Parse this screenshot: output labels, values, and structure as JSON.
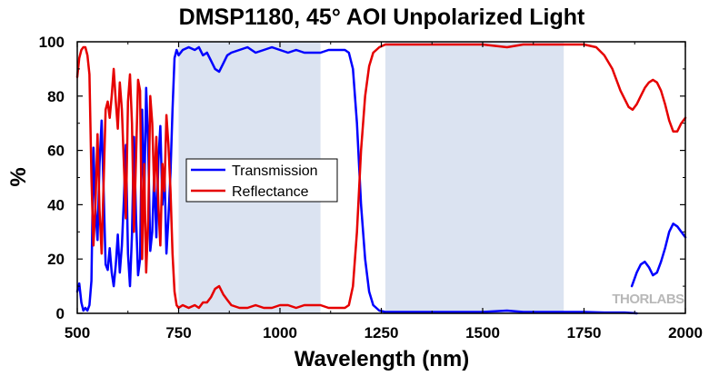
{
  "chart_data": {
    "type": "line",
    "title": "DMSP1180, 45° AOI Unpolarized Light",
    "xlabel": "Wavelength (nm)",
    "ylabel": "%",
    "xlim": [
      500,
      2000
    ],
    "ylim": [
      0,
      100
    ],
    "xticks": [
      500,
      750,
      1000,
      1250,
      1500,
      1750,
      2000
    ],
    "yticks": [
      0,
      20,
      40,
      60,
      80,
      100
    ],
    "xtick_labels": [
      "500",
      "750",
      "1000",
      "1250",
      "1500",
      "1750",
      "2000"
    ],
    "ytick_labels": [
      "0",
      "20",
      "40",
      "60",
      "80",
      "100"
    ],
    "shaded_regions": [
      {
        "x": [
          750,
          1100
        ],
        "color": "#dbe3f1"
      },
      {
        "x": [
          1260,
          1700
        ],
        "color": "#dbe3f1"
      }
    ],
    "legend_position": "center-left",
    "watermark": "THORLABS",
    "series": [
      {
        "name": "Transmission",
        "color": "#0000ff",
        "segments": [
          [
            [
              500,
              8
            ],
            [
              505,
              11
            ],
            [
              510,
              4
            ],
            [
              515,
              1
            ],
            [
              520,
              2
            ],
            [
              525,
              1
            ],
            [
              530,
              3
            ],
            [
              535,
              12
            ],
            [
              540,
              61
            ],
            [
              545,
              38
            ],
            [
              550,
              27
            ],
            [
              555,
              55
            ],
            [
              560,
              71
            ],
            [
              565,
              45
            ],
            [
              570,
              18
            ],
            [
              575,
              16
            ],
            [
              580,
              24
            ],
            [
              585,
              15
            ],
            [
              590,
              10
            ],
            [
              595,
              18
            ],
            [
              600,
              29
            ],
            [
              605,
              15
            ],
            [
              610,
              25
            ],
            [
              615,
              42
            ],
            [
              620,
              62
            ],
            [
              625,
              22
            ],
            [
              630,
              10
            ],
            [
              635,
              29
            ],
            [
              640,
              65
            ],
            [
              645,
              35
            ],
            [
              650,
              14
            ],
            [
              655,
              20
            ],
            [
              660,
              75
            ],
            [
              665,
              40
            ],
            [
              670,
              83
            ],
            [
              675,
              61
            ],
            [
              680,
              23
            ],
            [
              685,
              30
            ],
            [
              690,
              52
            ],
            [
              695,
              28
            ],
            [
              700,
              56
            ],
            [
              705,
              69
            ],
            [
              710,
              40
            ],
            [
              715,
              53
            ],
            [
              720,
              22
            ],
            [
              725,
              35
            ],
            [
              730,
              52
            ],
            [
              735,
              75
            ],
            [
              740,
              94
            ],
            [
              745,
              97
            ],
            [
              750,
              95
            ],
            [
              760,
              97
            ],
            [
              775,
              98
            ],
            [
              790,
              97
            ],
            [
              800,
              98
            ],
            [
              810,
              95
            ],
            [
              820,
              96
            ],
            [
              830,
              93
            ],
            [
              840,
              90
            ],
            [
              850,
              89
            ],
            [
              860,
              92
            ],
            [
              870,
              95
            ],
            [
              880,
              96
            ],
            [
              900,
              97
            ],
            [
              920,
              98
            ],
            [
              940,
              96
            ],
            [
              960,
              97
            ],
            [
              980,
              98
            ],
            [
              1000,
              97
            ],
            [
              1020,
              96
            ],
            [
              1040,
              97
            ],
            [
              1060,
              96
            ],
            [
              1080,
              96
            ],
            [
              1100,
              96
            ],
            [
              1120,
              97
            ],
            [
              1140,
              97
            ],
            [
              1160,
              97
            ],
            [
              1170,
              96
            ],
            [
              1180,
              90
            ],
            [
              1190,
              70
            ],
            [
              1200,
              40
            ],
            [
              1210,
              20
            ],
            [
              1220,
              8
            ],
            [
              1230,
              3
            ],
            [
              1245,
              1
            ],
            [
              1260,
              0.5
            ],
            [
              1300,
              0.5
            ],
            [
              1400,
              0.5
            ],
            [
              1500,
              0.5
            ],
            [
              1560,
              1
            ],
            [
              1600,
              0.5
            ],
            [
              1700,
              0.5
            ],
            [
              1750,
              0.5
            ],
            [
              1800,
              0.3
            ],
            [
              1850,
              0.3
            ],
            [
              1880,
              0
            ]
          ],
          [
            [
              1868,
              10
            ],
            [
              1880,
              15
            ],
            [
              1890,
              18
            ],
            [
              1900,
              19
            ],
            [
              1910,
              17
            ],
            [
              1920,
              14
            ],
            [
              1930,
              15
            ],
            [
              1940,
              19
            ],
            [
              1950,
              24
            ],
            [
              1960,
              30
            ],
            [
              1970,
              33
            ],
            [
              1980,
              32
            ],
            [
              1990,
              30
            ],
            [
              2000,
              28
            ]
          ]
        ]
      },
      {
        "name": "Reflectance",
        "color": "#e60000",
        "segments": [
          [
            [
              500,
              87
            ],
            [
              505,
              94
            ],
            [
              510,
              97
            ],
            [
              515,
              98
            ],
            [
              520,
              98
            ],
            [
              525,
              95
            ],
            [
              530,
              88
            ],
            [
              535,
              50
            ],
            [
              540,
              25
            ],
            [
              545,
              41
            ],
            [
              550,
              66
            ],
            [
              555,
              38
            ],
            [
              560,
              22
            ],
            [
              565,
              48
            ],
            [
              570,
              75
            ],
            [
              575,
              78
            ],
            [
              580,
              72
            ],
            [
              585,
              80
            ],
            [
              590,
              90
            ],
            [
              595,
              78
            ],
            [
              600,
              68
            ],
            [
              605,
              85
            ],
            [
              610,
              75
            ],
            [
              615,
              55
            ],
            [
              620,
              35
            ],
            [
              625,
              78
            ],
            [
              630,
              88
            ],
            [
              635,
              70
            ],
            [
              640,
              30
            ],
            [
              645,
              58
            ],
            [
              650,
              86
            ],
            [
              655,
              82
            ],
            [
              660,
              20
            ],
            [
              665,
              55
            ],
            [
              670,
              15
            ],
            [
              675,
              35
            ],
            [
              680,
              80
            ],
            [
              685,
              70
            ],
            [
              690,
              45
            ],
            [
              695,
              65
            ],
            [
              700,
              40
            ],
            [
              705,
              25
            ],
            [
              710,
              55
            ],
            [
              715,
              45
            ],
            [
              720,
              73
            ],
            [
              725,
              62
            ],
            [
              730,
              45
            ],
            [
              735,
              22
            ],
            [
              740,
              8
            ],
            [
              745,
              3
            ],
            [
              750,
              2
            ],
            [
              760,
              3
            ],
            [
              775,
              2
            ],
            [
              790,
              3
            ],
            [
              800,
              2
            ],
            [
              810,
              4
            ],
            [
              820,
              4
            ],
            [
              830,
              6
            ],
            [
              840,
              9
            ],
            [
              850,
              10
            ],
            [
              860,
              7
            ],
            [
              870,
              5
            ],
            [
              880,
              3
            ],
            [
              900,
              2
            ],
            [
              920,
              2
            ],
            [
              940,
              3
            ],
            [
              960,
              2
            ],
            [
              980,
              2
            ],
            [
              1000,
              3
            ],
            [
              1020,
              3
            ],
            [
              1040,
              2
            ],
            [
              1060,
              3
            ],
            [
              1080,
              3
            ],
            [
              1100,
              3
            ],
            [
              1120,
              2
            ],
            [
              1140,
              2
            ],
            [
              1160,
              2
            ],
            [
              1170,
              3
            ],
            [
              1180,
              10
            ],
            [
              1190,
              30
            ],
            [
              1200,
              60
            ],
            [
              1210,
              80
            ],
            [
              1220,
              91
            ],
            [
              1230,
              96
            ],
            [
              1245,
              98
            ],
            [
              1260,
              99
            ],
            [
              1300,
              99
            ],
            [
              1400,
              99
            ],
            [
              1500,
              99
            ],
            [
              1560,
              98
            ],
            [
              1600,
              99
            ],
            [
              1700,
              99
            ],
            [
              1750,
              99
            ],
            [
              1780,
              98
            ],
            [
              1800,
              95
            ],
            [
              1820,
              90
            ],
            [
              1840,
              82
            ],
            [
              1850,
              79
            ],
            [
              1860,
              76
            ],
            [
              1870,
              75
            ],
            [
              1880,
              77
            ],
            [
              1890,
              80
            ],
            [
              1900,
              83
            ],
            [
              1910,
              85
            ],
            [
              1920,
              86
            ],
            [
              1930,
              85
            ],
            [
              1940,
              82
            ],
            [
              1950,
              77
            ],
            [
              1960,
              71
            ],
            [
              1970,
              67
            ],
            [
              1980,
              67
            ],
            [
              1990,
              70
            ],
            [
              2000,
              72
            ]
          ]
        ]
      }
    ]
  }
}
